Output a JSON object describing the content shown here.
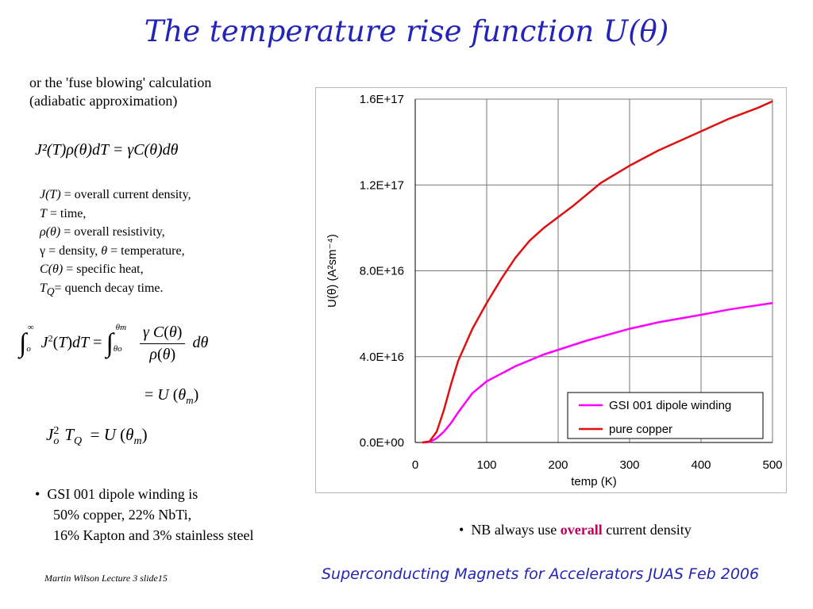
{
  "title": "The temperature rise function U(θ)",
  "intro": {
    "line1": "or the 'fuse blowing' calculation",
    "line2": "(adiabatic approximation)"
  },
  "equation1": "J²(T)ρ(θ)dT = γC(θ)dθ",
  "definitions": [
    {
      "sym": "J(T)",
      "text": " = overall current density,"
    },
    {
      "sym": "T",
      "text": " = time,"
    },
    {
      "sym": "ρ(θ)",
      "text": "  = overall resistivity,"
    },
    {
      "sym": "γ",
      "text": " = density,  "
    },
    {
      "sym": "θ",
      "text": " = temperature,"
    },
    {
      "sym": "C(θ)",
      "text": " = specific heat,"
    },
    {
      "sym": "T",
      "sub": "Q",
      "text": "= quench decay time."
    }
  ],
  "bullet1": {
    "line1": "GSI 001 dipole winding is",
    "line2": "50% copper, 22% NbTi,",
    "line3": "16% Kapton and 3% stainless steel"
  },
  "bullet2": {
    "before": "NB always use ",
    "highlight": "overall",
    "after": " current density"
  },
  "footer": {
    "left": "Martin Wilson Lecture 3 slide15",
    "right": "Superconducting Magnets for Accelerators JUAS Feb 2006"
  },
  "colors": {
    "title": "#2424b8",
    "highlight": "#c0005a",
    "gsi": "#ff00ff",
    "copper": "#dd1111"
  },
  "chart_data": {
    "type": "line",
    "xlabel": "temp (K)",
    "ylabel": "U(θ) (A²sm⁻⁴)",
    "xlim": [
      0,
      500
    ],
    "ylim": [
      0,
      1.6e+17
    ],
    "xticks": [
      0,
      100,
      200,
      300,
      400,
      500
    ],
    "yticks": [
      0,
      4e+16,
      8e+16,
      1.2e+17,
      1.6e+17
    ],
    "ytick_labels": [
      "0.0E+00",
      "4.0E+16",
      "8.0E+16",
      "1.2E+17",
      "1.6E+17"
    ],
    "grid": true,
    "legend_position": "bottom-right",
    "series": [
      {
        "name": "GSI 001 dipole winding",
        "color": "#ff00ff",
        "x": [
          10,
          20,
          30,
          40,
          50,
          60,
          80,
          100,
          140,
          180,
          240,
          300,
          340,
          400,
          440,
          500
        ],
        "y": [
          0,
          200000000000000.0,
          2000000000000000.0,
          5000000000000000.0,
          9000000000000000.0,
          1.4e+16,
          2.3e+16,
          2.85e+16,
          3.55e+16,
          4.1e+16,
          4.75e+16,
          5.3e+16,
          5.6e+16,
          5.95e+16,
          6.2e+16,
          6.5e+16
        ]
      },
      {
        "name": "pure copper",
        "color": "#dd1111",
        "x": [
          10,
          20,
          30,
          40,
          50,
          60,
          80,
          100,
          120,
          140,
          160,
          180,
          220,
          260,
          300,
          340,
          400,
          440,
          480,
          500
        ],
        "y": [
          0,
          500000000000000.0,
          5000000000000000.0,
          1.5e+16,
          2.7e+16,
          3.8e+16,
          5.3e+16,
          6.5e+16,
          7.6e+16,
          8.6e+16,
          9.4e+16,
          1e+17,
          1.1e+17,
          1.21e+17,
          1.29e+17,
          1.36e+17,
          1.45e+17,
          1.51e+17,
          1.56e+17,
          1.59e+17
        ]
      }
    ]
  }
}
